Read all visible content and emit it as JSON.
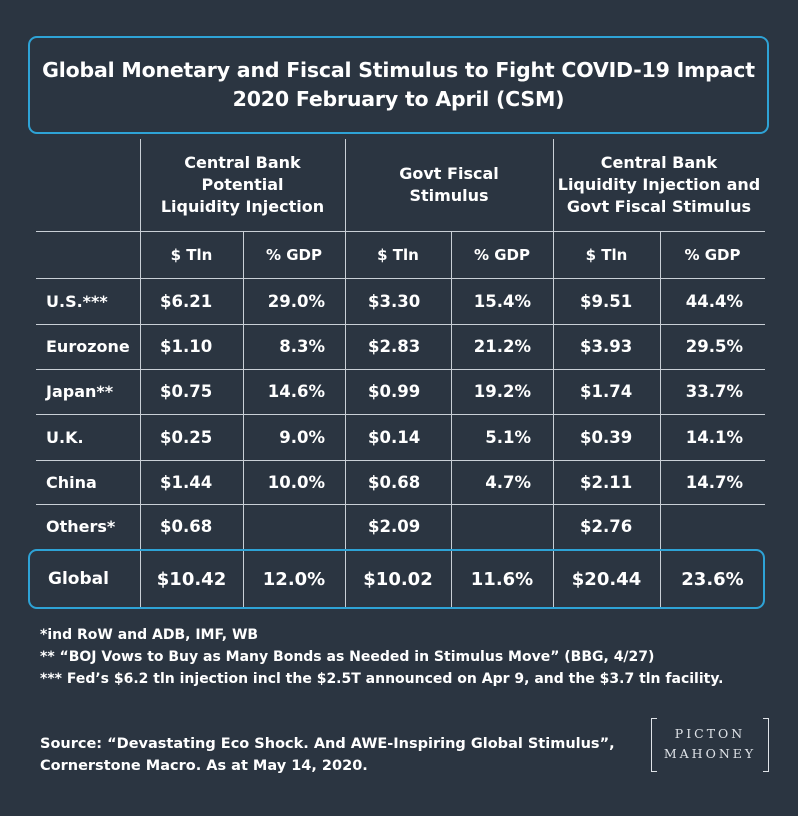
{
  "title": {
    "line1": "Global Monetary and Fiscal Stimulus to Fight COVID-19 Impact",
    "line2": "2020 February to April (CSM)"
  },
  "group_headers": [
    {
      "lines": [
        "Central Bank",
        "Potential",
        "Liquidity Injection"
      ]
    },
    {
      "lines": [
        "Govt Fiscal",
        "Stimulus"
      ]
    },
    {
      "lines": [
        "Central Bank",
        "Liquidity Injection and",
        "Govt Fiscal Stimulus"
      ]
    }
  ],
  "sub_headers": [
    "$ Tln",
    "% GDP",
    "$ Tln",
    "% GDP",
    "$ Tln",
    "% GDP"
  ],
  "chart_data": {
    "type": "table",
    "title": "Global Monetary and Fiscal Stimulus to Fight COVID-19 Impact 2020 February to April (CSM)",
    "columns": [
      "Central Bank Potential Liquidity Injection $ Tln",
      "Central Bank Potential Liquidity Injection % GDP",
      "Govt Fiscal Stimulus $ Tln",
      "Govt Fiscal Stimulus % GDP",
      "Central Bank Liquidity Injection and Govt Fiscal Stimulus $ Tln",
      "Central Bank Liquidity Injection and Govt Fiscal Stimulus % GDP"
    ],
    "rows": [
      {
        "label": "U.S.***",
        "values": [
          "$6.21",
          "29.0%",
          "$3.30",
          "15.4%",
          "$9.51",
          "44.4%"
        ]
      },
      {
        "label": "Eurozone",
        "values": [
          "$1.10",
          "8.3%",
          "$2.83",
          "21.2%",
          "$3.93",
          "29.5%"
        ]
      },
      {
        "label": "Japan**",
        "values": [
          "$0.75",
          "14.6%",
          "$0.99",
          "19.2%",
          "$1.74",
          "33.7%"
        ]
      },
      {
        "label": "U.K.",
        "values": [
          "$0.25",
          "9.0%",
          "$0.14",
          "5.1%",
          "$0.39",
          "14.1%"
        ]
      },
      {
        "label": "China",
        "values": [
          "$1.44",
          "10.0%",
          "$0.68",
          "4.7%",
          "$2.11",
          "14.7%"
        ]
      },
      {
        "label": "Others*",
        "values": [
          "$0.68",
          "",
          "$2.09",
          "",
          "$2.76",
          ""
        ]
      },
      {
        "label": "Global",
        "values": [
          "$10.42",
          "12.0%",
          "$10.02",
          "11.6%",
          "$20.44",
          "23.6%"
        ]
      }
    ]
  },
  "footnotes": [
    "*ind RoW and ADB, IMF, WB",
    "** “BOJ Vows to Buy as Many Bonds as Needed in Stimulus Move” (BBG, 4/27)",
    "*** Fed’s $6.2 tln injection incl the $2.5T announced on Apr 9, and the $3.7 tln facility."
  ],
  "source": {
    "line1": "Source: “Devastating Eco Shock. And AWE-Inspiring Global Stimulus”,",
    "line2": "Cornerstone Macro. As at May 14, 2020."
  },
  "logo": {
    "word1": "PICTON",
    "word2": "MAHONEY"
  },
  "colors": {
    "background": "#2b3541",
    "accent": "#2ea3d6",
    "text": "#ffffff",
    "rule": "#c9cfd6"
  }
}
